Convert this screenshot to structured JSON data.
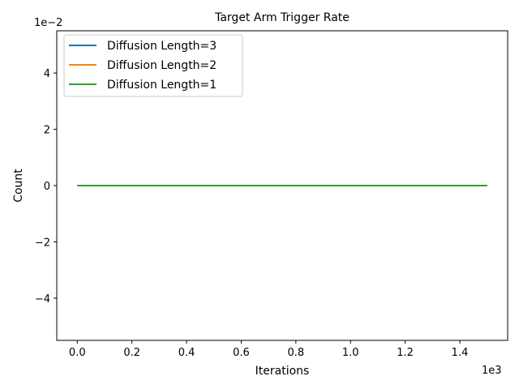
{
  "chart_data": {
    "type": "line",
    "title": "Target Arm Trigger Rate",
    "xlabel": "Iterations",
    "ylabel": "Count",
    "x_offset_label": "1e3",
    "y_offset_label": "1e−2",
    "xlim": [
      -0.075,
      1.575
    ],
    "ylim": [
      -0.055,
      0.055
    ],
    "xticks": [
      0.0,
      0.2,
      0.4,
      0.6,
      0.8,
      1.0,
      1.2,
      1.4
    ],
    "xtick_labels": [
      "0.0",
      "0.2",
      "0.4",
      "0.6",
      "0.8",
      "1.0",
      "1.2",
      "1.4"
    ],
    "yticks": [
      -0.04,
      -0.02,
      0.0,
      0.02,
      0.04
    ],
    "ytick_labels": [
      "−4",
      "−2",
      "0",
      "2",
      "4"
    ],
    "grid": false,
    "legend_position": "upper-left",
    "x": [
      0.0,
      1.5
    ],
    "series": [
      {
        "name": "Diffusion Length=3",
        "color": "#1f77b4",
        "values": [
          0,
          0
        ]
      },
      {
        "name": "Diffusion Length=2",
        "color": "#ff7f0e",
        "values": [
          0,
          0
        ]
      },
      {
        "name": "Diffusion Length=1",
        "color": "#2ca02c",
        "values": [
          0,
          0
        ]
      }
    ]
  }
}
